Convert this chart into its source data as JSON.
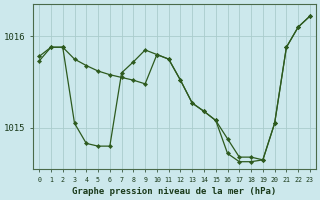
{
  "background_color": "#cce8ec",
  "plot_bg_color": "#cce8ec",
  "grid_color": "#aacccc",
  "line_color": "#2d5a1e",
  "xlabel": "Graphe pression niveau de la mer (hPa)",
  "xlim": [
    -0.5,
    23.5
  ],
  "ylim": [
    1014.55,
    1016.35
  ],
  "yticks": [
    1015.0,
    1016.0
  ],
  "xticks": [
    0,
    1,
    2,
    3,
    4,
    5,
    6,
    7,
    8,
    9,
    10,
    11,
    12,
    13,
    14,
    15,
    16,
    17,
    18,
    19,
    20,
    21,
    22,
    23
  ],
  "line1_x": [
    0,
    1,
    2,
    3,
    4,
    5,
    6,
    7,
    8,
    9,
    10,
    11,
    12,
    13,
    14,
    15,
    16,
    17,
    18,
    19,
    20,
    21,
    22,
    23
  ],
  "line1_y": [
    1015.73,
    1015.88,
    1015.88,
    1015.05,
    1014.83,
    1014.8,
    1014.8,
    1015.6,
    1015.72,
    1015.85,
    1015.8,
    1015.75,
    1015.52,
    1015.27,
    1015.18,
    1015.08,
    1014.72,
    1014.63,
    1014.63,
    1014.65,
    1015.05,
    1015.88,
    1016.1,
    1016.22
  ],
  "line2_x": [
    0,
    1,
    2,
    3,
    4,
    5,
    6,
    7,
    8,
    9,
    10,
    11,
    12,
    13,
    14,
    15,
    16,
    17,
    18,
    19,
    20,
    21,
    22,
    23
  ],
  "line2_y": [
    1015.78,
    1015.88,
    1015.88,
    1015.75,
    1015.68,
    1015.62,
    1015.58,
    1015.55,
    1015.52,
    1015.48,
    1015.8,
    1015.75,
    1015.52,
    1015.27,
    1015.18,
    1015.08,
    1014.88,
    1014.68,
    1014.68,
    1014.65,
    1015.05,
    1015.88,
    1016.1,
    1016.22
  ]
}
